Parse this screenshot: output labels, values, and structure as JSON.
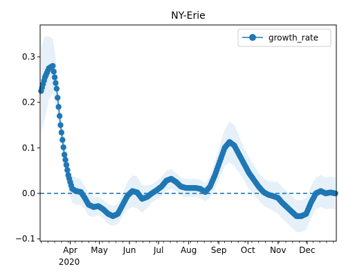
{
  "chart_data": {
    "type": "line",
    "title": "NY-Erie",
    "xlabel": "",
    "ylabel": "",
    "x_start": "2020-03-01",
    "x_end": "2020-12-31",
    "ylim": [
      -0.105,
      0.37
    ],
    "y_ticks": [
      -0.1,
      0.0,
      0.1,
      0.2,
      0.3
    ],
    "y_tick_labels": [
      "−0.1",
      "0.0",
      "0.1",
      "0.2",
      "0.3"
    ],
    "x_ticks": [
      {
        "date": "2020-04-01",
        "label": "Apr"
      },
      {
        "date": "2020-05-01",
        "label": "May"
      },
      {
        "date": "2020-06-01",
        "label": "Jun"
      },
      {
        "date": "2020-07-01",
        "label": "Jul"
      },
      {
        "date": "2020-08-01",
        "label": "Aug"
      },
      {
        "date": "2020-09-01",
        "label": "Sep"
      },
      {
        "date": "2020-10-01",
        "label": "Oct"
      },
      {
        "date": "2020-11-01",
        "label": "Nov"
      },
      {
        "date": "2020-12-01",
        "label": "Dec"
      }
    ],
    "x_year_label": "2020",
    "legend": {
      "placement": "upper-right",
      "entries": [
        "growth_rate"
      ]
    },
    "reference_line": {
      "y": 0.0,
      "style": "dashed"
    },
    "grid": false,
    "series": [
      {
        "name": "growth_rate",
        "color": "#1f77b4",
        "band_color": "#e6f0f8",
        "x": [
          "2020-03-02",
          "2020-03-06",
          "2020-03-10",
          "2020-03-14",
          "2020-03-18",
          "2020-03-22",
          "2020-03-26",
          "2020-03-30",
          "2020-04-03",
          "2020-04-07",
          "2020-04-12",
          "2020-04-16",
          "2020-04-20",
          "2020-04-25",
          "2020-04-30",
          "2020-05-05",
          "2020-05-10",
          "2020-05-15",
          "2020-05-20",
          "2020-05-25",
          "2020-05-30",
          "2020-06-04",
          "2020-06-09",
          "2020-06-14",
          "2020-06-19",
          "2020-06-24",
          "2020-06-29",
          "2020-07-04",
          "2020-07-09",
          "2020-07-14",
          "2020-07-19",
          "2020-07-24",
          "2020-07-29",
          "2020-08-03",
          "2020-08-08",
          "2020-08-13",
          "2020-08-18",
          "2020-08-23",
          "2020-08-28",
          "2020-09-02",
          "2020-09-07",
          "2020-09-12",
          "2020-09-17",
          "2020-09-22",
          "2020-09-27",
          "2020-10-02",
          "2020-10-07",
          "2020-10-12",
          "2020-10-17",
          "2020-10-22",
          "2020-10-27",
          "2020-11-01",
          "2020-11-05",
          "2020-11-10",
          "2020-11-15",
          "2020-11-20",
          "2020-11-25",
          "2020-11-30",
          "2020-12-05",
          "2020-12-10",
          "2020-12-15",
          "2020-12-20",
          "2020-12-25",
          "2020-12-30"
        ],
        "values": [
          0.225,
          0.255,
          0.275,
          0.28,
          0.23,
          0.15,
          0.085,
          0.04,
          0.01,
          0.005,
          0.003,
          -0.01,
          -0.025,
          -0.03,
          -0.028,
          -0.035,
          -0.045,
          -0.05,
          -0.045,
          -0.025,
          -0.005,
          0.005,
          0.002,
          -0.012,
          -0.008,
          0.0,
          0.007,
          0.015,
          0.028,
          0.032,
          0.025,
          0.015,
          0.012,
          0.012,
          0.012,
          0.01,
          0.003,
          0.015,
          0.04,
          0.07,
          0.1,
          0.113,
          0.105,
          0.085,
          0.065,
          0.045,
          0.03,
          0.015,
          0.003,
          -0.003,
          -0.006,
          -0.01,
          -0.02,
          -0.03,
          -0.04,
          -0.05,
          -0.05,
          -0.045,
          -0.02,
          0.0,
          0.005,
          0.0,
          0.002,
          0.0
        ],
        "band_halfwidth": [
          0.095,
          0.09,
          0.07,
          0.06,
          0.05,
          0.04,
          0.035,
          0.035,
          0.03,
          0.03,
          0.028,
          0.025,
          0.025,
          0.022,
          0.02,
          0.02,
          0.022,
          0.022,
          0.022,
          0.025,
          0.03,
          0.035,
          0.035,
          0.03,
          0.025,
          0.02,
          0.02,
          0.022,
          0.022,
          0.022,
          0.02,
          0.02,
          0.02,
          0.02,
          0.02,
          0.02,
          0.02,
          0.025,
          0.03,
          0.035,
          0.04,
          0.045,
          0.045,
          0.04,
          0.035,
          0.035,
          0.032,
          0.03,
          0.03,
          0.03,
          0.032,
          0.035,
          0.035,
          0.035,
          0.035,
          0.035,
          0.035,
          0.035,
          0.035,
          0.035,
          0.035,
          0.035,
          0.035,
          0.035
        ]
      }
    ]
  }
}
